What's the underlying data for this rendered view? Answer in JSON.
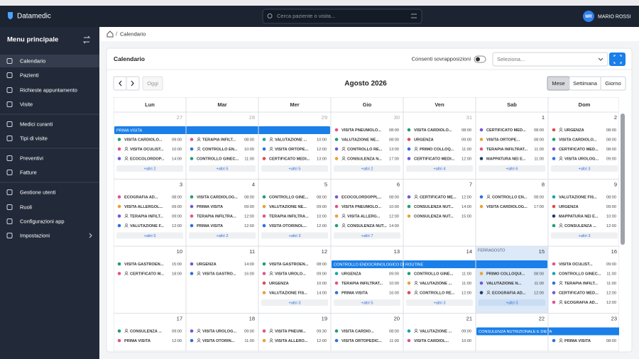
{
  "header": {
    "brand": "Datamedic",
    "search_placeholder": "Cerca paziente o visita...",
    "user_initials": "MR",
    "user_name": "MARIO ROSSI"
  },
  "sidebar": {
    "title": "Menu principale",
    "items": [
      "Calendario",
      "Pazienti",
      "Richieste appuntamento",
      "Visite",
      "Medici curanti",
      "Tipi di visite",
      "Preventivi",
      "Fatture",
      "Gestione utenti",
      "Ruoli",
      "Configurazioni app",
      "Impostazioni"
    ],
    "active": "Calendario"
  },
  "breadcrumb": "Calendario",
  "calendar": {
    "title": "Calendario",
    "overlap_label": "Consenti sovrapposizioni",
    "select_placeholder": "Seleziona...",
    "today_button": "Oggi",
    "period": "Agosto 2026",
    "views": [
      "Mese",
      "Settimana",
      "Giorno"
    ],
    "active_view": "Mese",
    "weekdays": [
      "Lun",
      "Mar",
      "Mer",
      "Gio",
      "Ven",
      "Sab",
      "Dom"
    ],
    "weeks": [
      [
        {
          "n": 27,
          "other": true,
          "banner": "PRIMA VISITA",
          "banner_days": 3,
          "events": [
            {
              "label": "VISITA CARDIOLO...",
              "time": "09:00",
              "color": "#1f9d74"
            },
            {
              "label": "VISITA OCULIST...",
              "time": "10:00",
              "color": "#e2528c",
              "icon": "person"
            },
            {
              "label": "ECOCOLORDOP...",
              "time": "14:00",
              "color": "#7256d8",
              "icon": "person"
            }
          ],
          "more": "+altri 2"
        },
        {
          "n": 28,
          "other": true,
          "events": [
            {
              "label": "TERAPIA INFILT...",
              "time": "08:00",
              "color": "#e2528c",
              "icon": "person"
            },
            {
              "label": "CONTROLLO EN...",
              "time": "10:00",
              "color": "#2f6fe0",
              "icon": "person"
            },
            {
              "label": "CONTROLLO GINEC...",
              "time": "11:00",
              "color": "#1f9d74"
            }
          ],
          "more": "+altri 5"
        },
        {
          "n": 29,
          "other": true,
          "events": [
            {
              "label": "VALUTAZIONE ...",
              "time": "10:00",
              "color": "#15a3b0",
              "icon": "person"
            },
            {
              "label": "VISITA ORTOPE...",
              "time": "12:00",
              "color": "#2f6fe0",
              "icon": "person"
            },
            {
              "label": "CERTIFICATO MEDI...",
              "time": "13:00",
              "color": "#dd4b4b"
            }
          ],
          "more": "+altri 5"
        },
        {
          "n": 30,
          "other": true,
          "events": [
            {
              "label": "VISITA PNEUMOLO...",
              "time": "08:00",
              "color": "#e2528c"
            },
            {
              "label": "VALUTAZIONE NE...",
              "time": "08:00",
              "color": "#1f9d74"
            },
            {
              "label": "CONTROLLO RE...",
              "time": "13:00",
              "color": "#7256d8",
              "icon": "person"
            },
            {
              "label": "CONSULENZA N...",
              "time": "17:00",
              "color": "#e8a13a",
              "icon": "person"
            }
          ],
          "more": "+altri 2"
        },
        {
          "n": 31,
          "other": true,
          "events": [
            {
              "label": "VISITA CARDIOLO...",
              "time": "08:00",
              "color": "#1f9d74"
            },
            {
              "label": "URGENZA",
              "time": "09:00",
              "color": "#dd4b4b"
            },
            {
              "label": "PRIMO COLLOQ...",
              "time": "11:00",
              "color": "#2f6fe0",
              "icon": "person"
            },
            {
              "label": "CERTIFICATO MEDI...",
              "time": "12:00",
              "color": "#7256d8"
            }
          ],
          "more": "+altri 4"
        },
        {
          "n": 1,
          "events": [
            {
              "label": "CERTIFICATO MED...",
              "time": "08:00",
              "color": "#7256d8"
            },
            {
              "label": "VISITA ORTOPE...",
              "time": "08:00",
              "color": "#e8a13a"
            },
            {
              "label": "TERAPIA INFILTRAT...",
              "time": "11:00",
              "color": "#e2528c"
            },
            {
              "label": "MAPPATURA NEI E...",
              "time": "11:00",
              "color": "#1a3d6e"
            }
          ],
          "more": "+altri 6"
        },
        {
          "n": 2,
          "events": [
            {
              "label": "URGENZA",
              "time": "08:00",
              "color": "#dd4b4b",
              "icon": "person"
            },
            {
              "label": "VISITA CARDIOLO...",
              "time": "08:00",
              "color": "#1f9d74"
            },
            {
              "label": "CERTIFICATO MED...",
              "time": "08:00",
              "color": "#7256d8"
            },
            {
              "label": "VISITA UROLOG...",
              "time": "09:00",
              "color": "#2f6fe0",
              "icon": "person"
            }
          ],
          "more": "+altri 3"
        }
      ],
      [
        {
          "n": 3,
          "events": [
            {
              "label": "ECOGRAFIA AD...",
              "time": "08:00",
              "color": "#e2528c"
            },
            {
              "label": "VISITA ALLERGOL...",
              "time": "09:00",
              "color": "#e8a13a"
            },
            {
              "label": "TERAPIA INFILT...",
              "time": "09:00",
              "color": "#7256d8",
              "icon": "person"
            },
            {
              "label": "VALUTAZIONE F...",
              "time": "12:00",
              "color": "#2f6fe0",
              "icon": "person"
            }
          ],
          "more": "+altri 5"
        },
        {
          "n": 4,
          "events": [
            {
              "label": "VISITA CARDIOLOG...",
              "time": "08:00",
              "color": "#1f9d74"
            },
            {
              "label": "PRIMA VISITA",
              "time": "09:00",
              "color": "#7256d8"
            },
            {
              "label": "TERAPIA INFILTRA...",
              "time": "12:00",
              "color": "#e2528c"
            },
            {
              "label": "PRIMA VISITA",
              "time": "12:00",
              "color": "#2f6fe0"
            }
          ],
          "more": "+altri 2"
        },
        {
          "n": 5,
          "events": [
            {
              "label": "CONTROLLO GINE...",
              "time": "08:00",
              "color": "#1f9d74"
            },
            {
              "label": "VALUTAZIONE NE...",
              "time": "09:00",
              "color": "#e8a13a"
            },
            {
              "label": "TERAPIA INFILTRA...",
              "time": "10:00",
              "color": "#e2528c"
            },
            {
              "label": "VISITA OTORINOL...",
              "time": "12:00",
              "color": "#2f6fe0"
            }
          ],
          "more": "+altri 3"
        },
        {
          "n": 6,
          "events": [
            {
              "label": "ECOCOLORDOPPL...",
              "time": "08:00",
              "color": "#7256d8"
            },
            {
              "label": "VISITA PNEUMOLO...",
              "time": "10:00",
              "color": "#e2528c"
            },
            {
              "label": "VISITA ALLERG...",
              "time": "12:00",
              "color": "#e8a13a",
              "icon": "person"
            },
            {
              "label": "CONSULENZA NUT...",
              "time": "14:00",
              "color": "#1f9d74",
              "icon": "person"
            }
          ],
          "more": "+altri 7"
        },
        {
          "n": 7,
          "events": [
            {
              "label": "CERTIFICATO ME...",
              "time": "12:00",
              "color": "#7256d8",
              "icon": "person"
            },
            {
              "label": "CONSULENZA NUT...",
              "time": "14:00",
              "color": "#1f9d74"
            },
            {
              "label": "CONSULENZA NUT...",
              "time": "15:00",
              "color": "#e8a13a"
            }
          ]
        },
        {
          "n": 8,
          "events": [
            {
              "label": "CONTROLLO EN...",
              "time": "08:00",
              "color": "#2f6fe0",
              "icon": "person"
            },
            {
              "label": "VISITA CARDIOLOG...",
              "time": "17:00",
              "color": "#e8a13a"
            }
          ]
        },
        {
          "n": 9,
          "events": [
            {
              "label": "VALUTAZIONE FIS...",
              "time": "08:00",
              "color": "#15a3b0"
            },
            {
              "label": "URGENZA",
              "time": "09:00",
              "color": "#dd4b4b"
            },
            {
              "label": "MAPPATURA NEI E...",
              "time": "10:00",
              "color": "#1a3d6e"
            },
            {
              "label": "CONSULENZA ...",
              "time": "12:00",
              "color": "#1f9d74",
              "icon": "person"
            }
          ],
          "more": "+altri 3"
        }
      ],
      [
        {
          "n": 10,
          "events": [
            {
              "label": "VISITA GASTROEN...",
              "time": "15:00",
              "color": "#1f9d74"
            },
            {
              "label": "CERTIFICATO M...",
              "time": "18:00",
              "color": "#e2528c",
              "icon": "person"
            }
          ]
        },
        {
          "n": 11,
          "events": [
            {
              "label": "URGENZA",
              "time": "14:00",
              "color": "#7256d8"
            },
            {
              "label": "VISITA GASTRO...",
              "time": "16:00",
              "color": "#2f6fe0",
              "icon": "person"
            }
          ]
        },
        {
          "n": 12,
          "events": [
            {
              "label": "VISITA GASTROEN...",
              "time": "08:00",
              "color": "#1f9d74"
            },
            {
              "label": "VISITA UROLO...",
              "time": "09:00",
              "color": "#e2528c",
              "icon": "person"
            },
            {
              "label": "URGENZA",
              "time": "10:00",
              "color": "#dd4b4b"
            },
            {
              "label": "VALUTAZIONE FIS...",
              "time": "14:00",
              "color": "#e8a13a"
            }
          ],
          "more": "+altri 3"
        },
        {
          "n": 13,
          "banner": "CONTROLLO ENDOCRINOLOGICO DI ROUTINE",
          "banner_days": 3,
          "events": [
            {
              "label": "URGENZA",
              "time": "09:00",
              "color": "#15a3b0"
            },
            {
              "label": "TERAPIA INFILTRAT...",
              "time": "10:00",
              "color": "#e2528c"
            },
            {
              "label": "PRIMA VISITA",
              "time": "16:00",
              "color": "#2f6fe0"
            }
          ],
          "more": "+altri 5"
        },
        {
          "n": 14,
          "events": [
            {
              "label": "CONTROLLO GINE...",
              "time": "11:00",
              "color": "#1f9d74"
            },
            {
              "label": "VALUTAZIONE ...",
              "time": "11:00",
              "color": "#e8a13a",
              "icon": "person"
            },
            {
              "label": "CONTROLLO RE...",
              "time": "12:00",
              "color": "#dd4b4b",
              "icon": "person"
            }
          ],
          "more": "+altri 3"
        },
        {
          "n": 15,
          "holiday": "FERRAGOSTO",
          "today": true,
          "events": [
            {
              "label": "PRIMO COLLOQUI...",
              "time": "08:00",
              "color": "#e8a13a"
            },
            {
              "label": "VALUTAZIONE N...",
              "time": "11:00",
              "color": "#7256d8"
            },
            {
              "label": "ECOGRAFIA AD...",
              "time": "12:00",
              "color": "#1a3d6e",
              "icon": "person"
            }
          ],
          "more": "+altri 3"
        },
        {
          "n": 16,
          "events": [
            {
              "label": "VISITA OCULIST...",
              "time": "09:00",
              "color": "#e2528c"
            },
            {
              "label": "CONTROLLO GINEC...",
              "time": "11:00",
              "color": "#15a3b0"
            },
            {
              "label": "TERAPIA INFILT...",
              "time": "11:00",
              "color": "#2f6fe0",
              "icon": "person"
            },
            {
              "label": "CERTIFICATO MED...",
              "time": "12:00",
              "color": "#7256d8"
            },
            {
              "label": "ECOGRAFIA AD...",
              "time": "12:00",
              "color": "#e2528c",
              "icon": "person"
            }
          ]
        }
      ],
      [
        {
          "n": 17,
          "events": [
            {
              "label": "CONSULENZA ...",
              "time": "09:00",
              "color": "#1f9d74",
              "icon": "person"
            },
            {
              "label": "PRIMA VISITA",
              "time": "12:00",
              "color": "#e2528c"
            }
          ]
        },
        {
          "n": 18,
          "events": [
            {
              "label": "VISITA UROLOG...",
              "time": "09:00",
              "color": "#7256d8",
              "icon": "person"
            },
            {
              "label": "VISITA OTORIN...",
              "time": "11:00",
              "color": "#2f6fe0",
              "icon": "person"
            }
          ]
        },
        {
          "n": 19,
          "events": [
            {
              "label": "VISITA PNEUM...",
              "time": "09:30",
              "color": "#e2528c",
              "icon": "person"
            },
            {
              "label": "VISITA ALLERO...",
              "time": "12:00",
              "color": "#e8a13a",
              "icon": "person"
            }
          ]
        },
        {
          "n": 20,
          "events": [
            {
              "label": "VISITA CARDIO...",
              "time": "08:00",
              "color": "#1f9d74"
            },
            {
              "label": "VISITA ORTOPEDIC...",
              "time": "11:00",
              "color": "#2f6fe0"
            }
          ]
        },
        {
          "n": 21,
          "events": [
            {
              "label": "VALUTAZIONE ...",
              "time": "09:00",
              "color": "#15a3b0",
              "icon": "person"
            },
            {
              "label": "VISITA CARDIOL...",
              "time": "10:00",
              "color": "#e2528c"
            }
          ]
        },
        {
          "n": 22,
          "banner": "CONSULENZA NUTRIZIONALE E DIETA",
          "banner_days": 2,
          "events": []
        },
        {
          "n": 23,
          "events": [
            {
              "label": "PRIMA VISITA",
              "time": "08:00",
              "color": "#2f6fe0",
              "icon": "person"
            }
          ]
        }
      ]
    ]
  }
}
